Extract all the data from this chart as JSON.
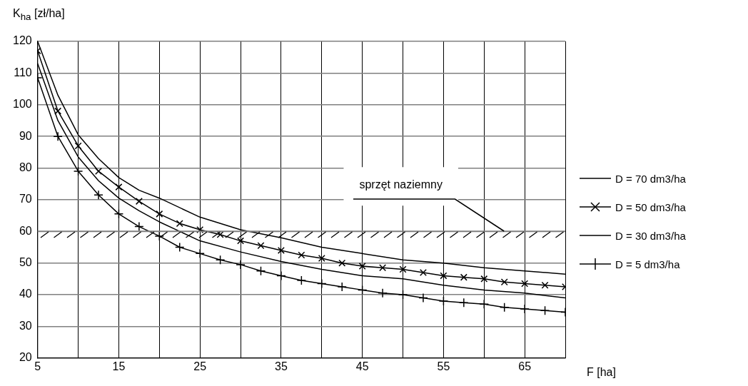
{
  "chart_data": {
    "type": "line",
    "ylabel": "K$_{ha}$ [zł/ha]",
    "xlabel": "F [ha]",
    "xlim": [
      5,
      70
    ],
    "ylim": [
      20,
      120
    ],
    "xticks": [
      5,
      {
        "value": 10,
        "label": null
      },
      15,
      {
        "value": 20,
        "label": null
      },
      25,
      {
        "value": 30,
        "label": null
      },
      35,
      {
        "value": 40,
        "label": null
      },
      45,
      {
        "value": 50,
        "label": null
      },
      55,
      {
        "value": 60,
        "label": null
      },
      65,
      {
        "value": 70,
        "label": null
      }
    ],
    "yticks": [
      20,
      30,
      40,
      50,
      60,
      70,
      80,
      90,
      100,
      110,
      120
    ],
    "grid": true,
    "legend": "right",
    "line_style": "solid",
    "series": [
      {
        "name": "D = 70 dm3/ha",
        "color": "#000000",
        "marker": "none",
        "x": [
          5,
          7.5,
          10,
          12.5,
          15,
          17.5,
          20,
          25,
          30,
          35,
          40,
          45,
          50,
          55,
          60,
          65,
          70
        ],
        "values": [
          120,
          103,
          90.5,
          83,
          77,
          73,
          70.5,
          64.5,
          60.5,
          58,
          55,
          53,
          51,
          50,
          48.5,
          47.5,
          46.5
        ]
      },
      {
        "name": "D = 50 dm3/ha",
        "color": "#000000",
        "marker": "cross",
        "x": [
          5,
          7.5,
          10,
          12.5,
          15,
          17.5,
          20,
          22.5,
          25,
          27.5,
          30,
          32.5,
          35,
          37.5,
          40,
          42.5,
          45,
          47.5,
          50,
          52.5,
          55,
          57.5,
          60,
          62.5,
          65,
          67.5,
          70
        ],
        "values": [
          117,
          98,
          87,
          79,
          74,
          69.5,
          65.5,
          62.5,
          60.5,
          59,
          57,
          55.5,
          54,
          52.5,
          51.5,
          50,
          49,
          48.5,
          48,
          47,
          46,
          45.5,
          45,
          44,
          43.5,
          43,
          42.5
        ]
      },
      {
        "name": "D = 30 dm3/ha",
        "color": "#000000",
        "marker": "none",
        "x": [
          5,
          7.5,
          10,
          12.5,
          15,
          17.5,
          20,
          25,
          30,
          35,
          40,
          45,
          50,
          55,
          60,
          65,
          70
        ],
        "values": [
          113,
          95,
          83.5,
          76,
          70.5,
          66.5,
          63,
          57,
          53.5,
          50.5,
          48,
          46,
          45,
          43,
          41.5,
          40.5,
          39
        ]
      },
      {
        "name": "D = 5 dm3/ha",
        "color": "#000000",
        "marker": "plus",
        "x": [
          5,
          7.5,
          10,
          12.5,
          15,
          17.5,
          20,
          22.5,
          25,
          27.5,
          30,
          32.5,
          35,
          37.5,
          40,
          42.5,
          45,
          47.5,
          50,
          52.5,
          55,
          57.5,
          60,
          62.5,
          65,
          67.5,
          70
        ],
        "values": [
          108.5,
          90,
          79,
          71.5,
          65.5,
          61.5,
          58.5,
          55,
          53,
          51,
          49.5,
          47.5,
          46,
          44.5,
          43.5,
          42.5,
          41.5,
          40.5,
          40,
          39,
          38,
          37.5,
          37,
          36,
          35.5,
          35,
          34.5
        ]
      }
    ],
    "ref_lines": [
      {
        "axis": "y",
        "value": 60,
        "label": null,
        "color": "#808080"
      }
    ],
    "annotations": [
      {
        "text": "sprzęt naziemny",
        "x": 62.5,
        "y": 60
      }
    ]
  }
}
